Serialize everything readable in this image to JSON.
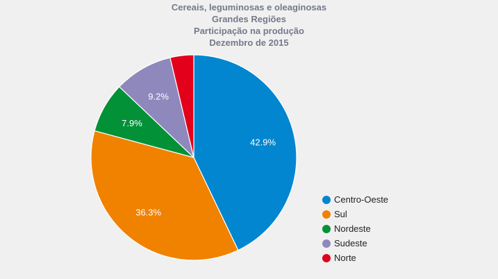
{
  "chart_data": {
    "type": "pie",
    "title": [
      "Cereais, leguminosas e oleaginosas",
      "Grandes Regiões",
      "Participação na produção",
      "Dezembro de 2015"
    ],
    "categories": [
      "Centro-Oeste",
      "Sul",
      "Nordeste",
      "Sudeste",
      "Norte"
    ],
    "values": [
      42.9,
      36.3,
      7.9,
      9.2,
      3.7
    ],
    "labels": [
      "42.9%",
      "36.3%",
      "7.9%",
      "9.2%",
      ""
    ],
    "colors": [
      "#0386d0",
      "#f08200",
      "#039138",
      "#8f88bd",
      "#e3001b"
    ],
    "legend_position": "bottom-right"
  }
}
